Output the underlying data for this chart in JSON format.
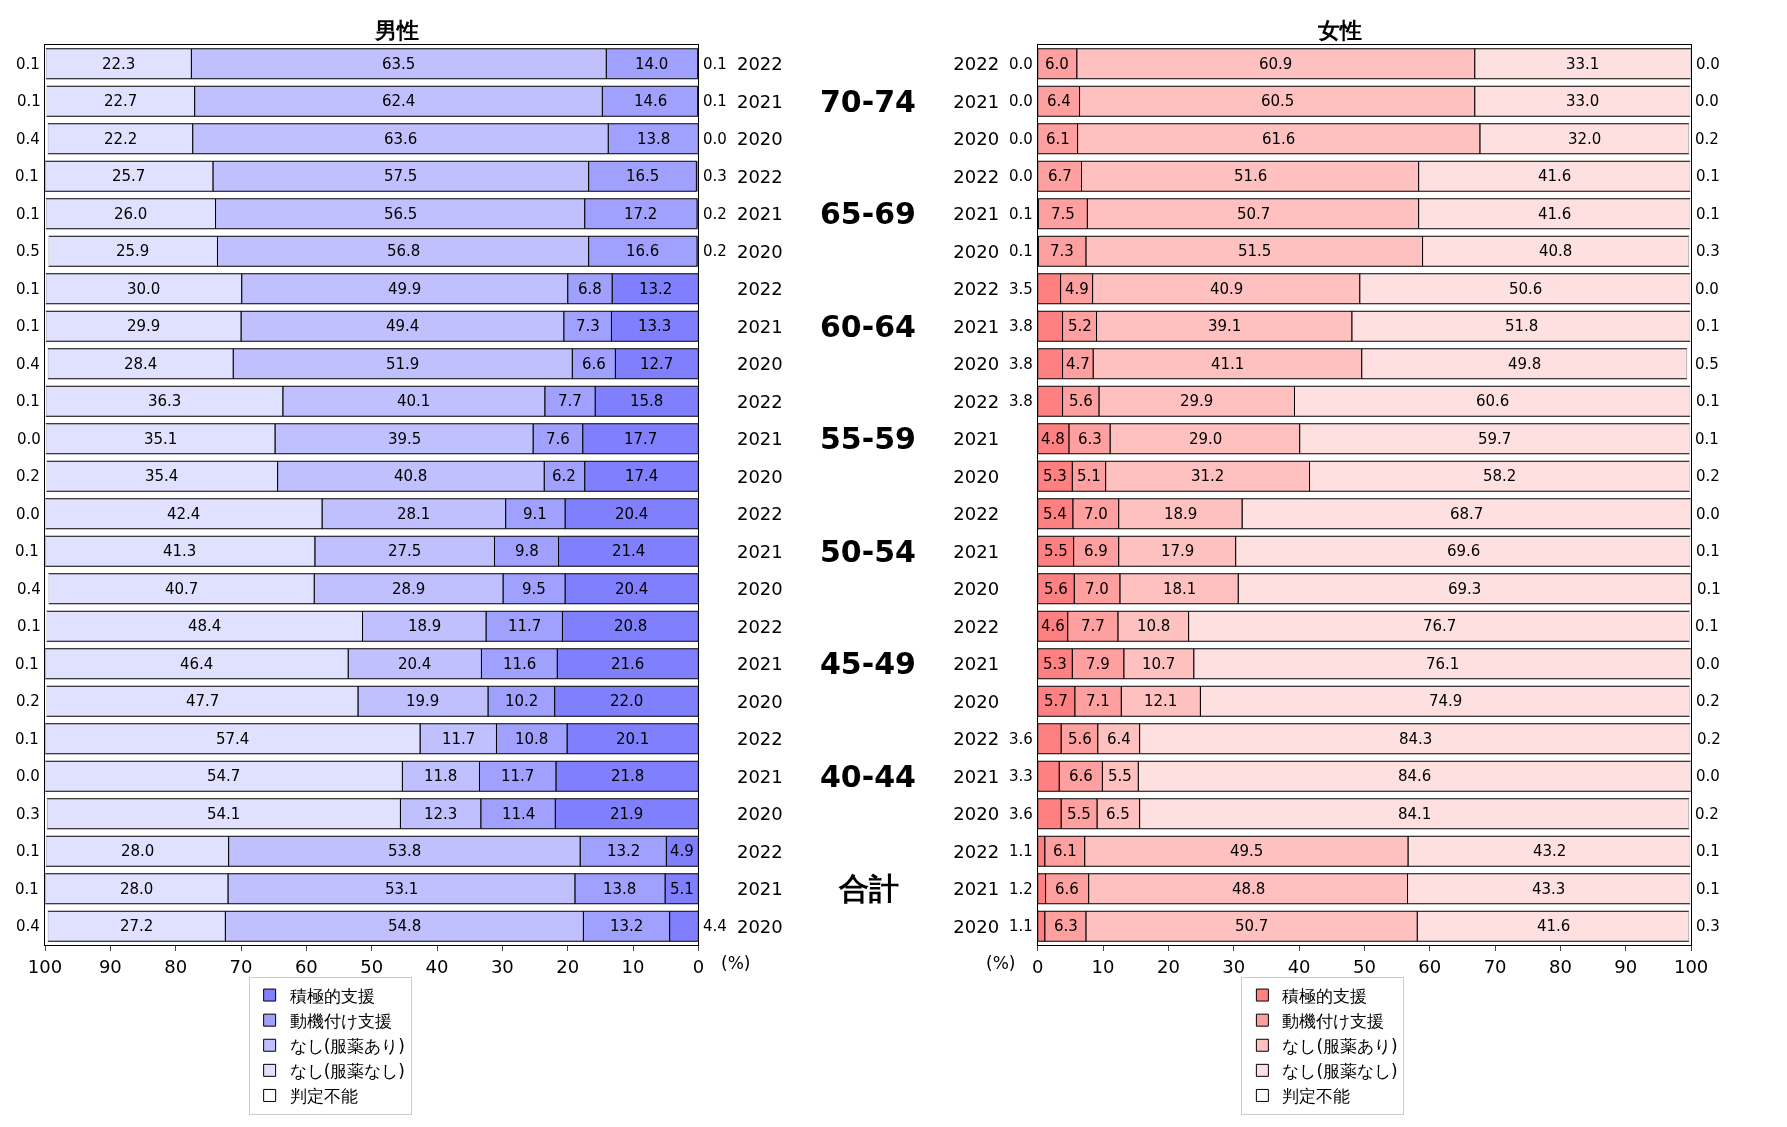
{
  "chart_data": [
    {
      "type": "bar",
      "orientation": "horizontal",
      "stacked": true,
      "title": "男性",
      "xlabel": "(%)",
      "legend": "bottom",
      "categories": [
        "2022",
        "2021",
        "2020",
        "2022",
        "2021",
        "2020",
        "2022",
        "2021",
        "2020",
        "2022",
        "2021",
        "2020",
        "2022",
        "2021",
        "2020",
        "2022",
        "2021",
        "2020",
        "2022",
        "2021",
        "2020",
        "2022",
        "2021",
        "2020"
      ],
      "annotations": [
        "70-74",
        "65-69",
        "60-64",
        "55-59",
        "50-54",
        "45-49",
        "40-44",
        "合計"
      ],
      "xlim": [
        100,
        0
      ],
      "xticks": [
        100,
        90,
        80,
        70,
        60,
        50,
        40,
        30,
        20,
        10,
        0
      ],
      "series": [
        {
          "name": "積極的支援",
          "color": "#8080ff",
          "values": [
            0.1,
            0.1,
            0.0,
            0.3,
            0.2,
            0.2,
            13.2,
            13.3,
            12.7,
            15.8,
            17.7,
            17.4,
            20.4,
            21.4,
            20.4,
            20.8,
            21.6,
            22.0,
            20.1,
            21.8,
            21.9,
            4.9,
            5.1,
            4.4
          ],
          "value_labels": [
            "0.1",
            "0.1",
            "0.0",
            "0.3",
            "0.2",
            "0.2",
            "13.2",
            "13.3",
            "12.7",
            "15.8",
            "17.7",
            "17.4",
            "20.4",
            "21.4",
            "20.4",
            "20.8",
            "21.6",
            "22.0",
            "20.1",
            "21.8",
            "21.9",
            "4.9",
            "5.1",
            "4.4"
          ]
        },
        {
          "name": "動機付け支援",
          "color": "#a0a0ff",
          "values": [
            14.0,
            14.6,
            13.8,
            16.5,
            17.2,
            16.6,
            6.8,
            7.3,
            6.6,
            7.7,
            7.6,
            6.2,
            9.1,
            9.8,
            9.5,
            11.7,
            11.6,
            10.2,
            10.8,
            11.7,
            11.4,
            13.2,
            13.8,
            13.2
          ],
          "value_labels": [
            "14.0",
            "14.6",
            "13.8",
            "16.5",
            "17.2",
            "16.6",
            "6.8",
            "7.3",
            "6.6",
            "7.7",
            "7.6",
            "6.2",
            "9.1",
            "9.8",
            "9.5",
            "11.7",
            "11.6",
            "10.2",
            "10.8",
            "11.7",
            "11.4",
            "13.2",
            "13.8",
            "13.2"
          ]
        },
        {
          "name": "なし(服薬あり)",
          "color": "#c0c0ff",
          "values": [
            63.5,
            62.4,
            63.6,
            57.5,
            56.5,
            56.8,
            49.9,
            49.4,
            51.9,
            40.1,
            39.5,
            40.8,
            28.1,
            27.5,
            28.9,
            18.9,
            20.4,
            19.9,
            11.7,
            11.8,
            12.3,
            53.8,
            53.1,
            54.8
          ],
          "value_labels": [
            "63.5",
            "62.4",
            "63.6",
            "57.5",
            "56.5",
            "56.8",
            "49.9",
            "49.4",
            "51.9",
            "40.1",
            "39.5",
            "40.8",
            "28.1",
            "27.5",
            "28.9",
            "18.9",
            "20.4",
            "19.9",
            "11.7",
            "11.8",
            "12.3",
            "53.8",
            "53.1",
            "54.8"
          ]
        },
        {
          "name": "なし(服薬なし)",
          "color": "#e0e0ff",
          "values": [
            22.3,
            22.7,
            22.2,
            25.7,
            26.0,
            25.9,
            30.0,
            29.9,
            28.4,
            36.3,
            35.1,
            35.4,
            42.4,
            41.3,
            40.7,
            48.4,
            46.4,
            47.7,
            57.4,
            54.7,
            54.1,
            28.0,
            28.0,
            27.2
          ],
          "value_labels": [
            "22.3",
            "22.7",
            "22.2",
            "25.7",
            "26.0",
            "25.9",
            "30.0",
            "29.9",
            "28.4",
            "36.3",
            "35.1",
            "35.4",
            "42.4",
            "41.3",
            "40.7",
            "48.4",
            "46.4",
            "47.7",
            "57.4",
            "54.7",
            "54.1",
            "28.0",
            "28.0",
            "27.2"
          ]
        },
        {
          "name": "判定不能",
          "color": "#ffffff",
          "values": [
            0.1,
            0.1,
            0.4,
            0.1,
            0.1,
            0.5,
            0.1,
            0.1,
            0.4,
            0.1,
            0.0,
            0.2,
            0.0,
            0.1,
            0.4,
            0.1,
            0.1,
            0.2,
            0.1,
            0.0,
            0.3,
            0.1,
            0.1,
            0.4
          ],
          "value_labels": [
            "0.1",
            "0.1",
            "0.4",
            "0.1",
            "0.1",
            "0.5",
            "0.1",
            "0.1",
            "0.4",
            "0.1",
            "0.0",
            "0.2",
            "0.0",
            "0.1",
            "0.4",
            "0.1",
            "0.1",
            "0.2",
            "0.1",
            "0.0",
            "0.3",
            "0.1",
            "0.1",
            "0.4"
          ]
        }
      ]
    },
    {
      "type": "bar",
      "orientation": "horizontal",
      "stacked": true,
      "title": "女性",
      "xlabel": "(%)",
      "legend": "bottom",
      "categories": [
        "2022",
        "2021",
        "2020",
        "2022",
        "2021",
        "2020",
        "2022",
        "2021",
        "2020",
        "2022",
        "2021",
        "2020",
        "2022",
        "2021",
        "2020",
        "2022",
        "2021",
        "2020",
        "2022",
        "2021",
        "2020",
        "2022",
        "2021",
        "2020"
      ],
      "xlim": [
        0,
        100
      ],
      "xticks": [
        0,
        10,
        20,
        30,
        40,
        50,
        60,
        70,
        80,
        90,
        100
      ],
      "series": [
        {
          "name": "積極的支援",
          "color": "#ff8080",
          "values": [
            0.0,
            0.0,
            0.0,
            0.0,
            0.1,
            0.1,
            3.5,
            3.8,
            3.8,
            3.8,
            4.8,
            5.3,
            5.4,
            5.5,
            5.6,
            4.6,
            5.3,
            5.7,
            3.6,
            3.3,
            3.6,
            1.1,
            1.2,
            1.1
          ],
          "value_labels": [
            "0.0",
            "0.0",
            "0.0",
            "0.0",
            "0.1",
            "0.1",
            "3.5",
            "3.8",
            "3.8",
            "3.8",
            "4.8",
            "5.3",
            "5.4",
            "5.5",
            "5.6",
            "4.6",
            "5.3",
            "5.7",
            "3.6",
            "3.3",
            "3.6",
            "1.1",
            "1.2",
            "1.1"
          ]
        },
        {
          "name": "動機付け支援",
          "color": "#ffa0a0",
          "values": [
            6.0,
            6.4,
            6.1,
            6.7,
            7.5,
            7.3,
            4.9,
            5.2,
            4.7,
            5.6,
            6.3,
            5.1,
            7.0,
            6.9,
            7.0,
            7.7,
            7.9,
            7.1,
            5.6,
            6.6,
            5.5,
            6.1,
            6.6,
            6.3
          ],
          "value_labels": [
            "6.0",
            "6.4",
            "6.1",
            "6.7",
            "7.5",
            "7.3",
            "4.9",
            "5.2",
            "4.7",
            "5.6",
            "6.3",
            "5.1",
            "7.0",
            "6.9",
            "7.0",
            "7.7",
            "7.9",
            "7.1",
            "5.6",
            "6.6",
            "5.5",
            "6.1",
            "6.6",
            "6.3"
          ]
        },
        {
          "name": "なし(服薬あり)",
          "color": "#ffc0c0",
          "values": [
            60.9,
            60.5,
            61.6,
            51.6,
            50.7,
            51.5,
            40.9,
            39.1,
            41.1,
            29.9,
            29.0,
            31.2,
            18.9,
            17.9,
            18.1,
            10.8,
            10.7,
            12.1,
            6.4,
            5.5,
            6.5,
            49.5,
            48.8,
            50.7
          ],
          "value_labels": [
            "60.9",
            "60.5",
            "61.6",
            "51.6",
            "50.7",
            "51.5",
            "40.9",
            "39.1",
            "41.1",
            "29.9",
            "29.0",
            "31.2",
            "18.9",
            "17.9",
            "18.1",
            "10.8",
            "10.7",
            "12.1",
            "6.4",
            "5.5",
            "6.5",
            "49.5",
            "48.8",
            "50.7"
          ]
        },
        {
          "name": "なし(服薬なし)",
          "color": "#ffe0e0",
          "values": [
            33.1,
            33.0,
            32.0,
            41.6,
            41.6,
            40.8,
            50.6,
            51.8,
            49.8,
            60.6,
            59.7,
            58.2,
            68.7,
            69.6,
            69.3,
            76.7,
            76.1,
            74.9,
            84.3,
            84.6,
            84.1,
            43.2,
            43.3,
            41.6
          ],
          "value_labels": [
            "33.1",
            "33.0",
            "32.0",
            "41.6",
            "41.6",
            "40.8",
            "50.6",
            "51.8",
            "49.8",
            "60.6",
            "59.7",
            "58.2",
            "68.7",
            "69.6",
            "69.3",
            "76.7",
            "76.1",
            "74.9",
            "84.3",
            "84.6",
            "84.1",
            "43.2",
            "43.3",
            "41.6"
          ]
        },
        {
          "name": "判定不能",
          "color": "#ffffff",
          "values": [
            0.0,
            0.0,
            0.2,
            0.1,
            0.1,
            0.3,
            0.0,
            0.1,
            0.5,
            0.1,
            0.1,
            0.2,
            0.0,
            0.1,
            0.1,
            0.1,
            0.0,
            0.2,
            0.2,
            0.0,
            0.2,
            0.1,
            0.1,
            0.3
          ],
          "value_labels": [
            "0.0",
            "0.0",
            "0.2",
            "0.1",
            "0.1",
            "0.3",
            "0.0",
            "0.1",
            "0.5",
            "0.1",
            "0.1",
            "0.2",
            "0.0",
            "0.1",
            "0.1",
            "0.1",
            "0.0",
            "0.2",
            "0.2",
            "0.0",
            "0.2",
            "0.1",
            "0.1",
            "0.3"
          ]
        }
      ]
    }
  ]
}
